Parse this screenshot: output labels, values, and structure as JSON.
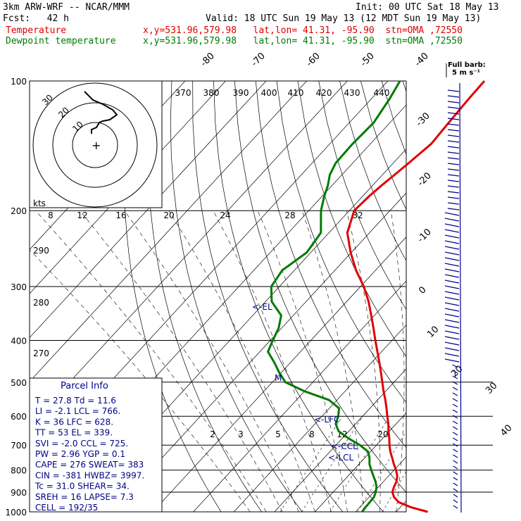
{
  "header": {
    "line1_left": "3km ARW-WRF -- NCAR/MMM",
    "line1_right": "Init: 00 UTC Sat 18 May 13",
    "line2_left": "Fcst:   42 h",
    "line2_right": "Valid: 18 UTC Sun 19 May 13 (12 MDT Sun 19 May 13)",
    "temp_label": "Temperature",
    "dew_label": "Dewpoint temperature",
    "location": "x,y=531.96,579.98   lat,lon= 41.31, -95.90  stn=OMA ,72550"
  },
  "colors": {
    "temperature": "#e00000",
    "dewpoint": "#007a00",
    "wind": "#00008b",
    "text_blue": "#00008b"
  },
  "legend": {
    "title": "Full barb:",
    "units": "5 m s⁻¹"
  },
  "hodograph": {
    "units": "kts",
    "ring_labels": [
      "30",
      "20",
      "10"
    ]
  },
  "parcel_info": {
    "title": "Parcel Info",
    "rows": [
      "T  =   27.8 Td =  11.6",
      "LI =   -2.1 LCL =  766.",
      "K  =     36 LFC = 628.",
      "TT =     53 EL  =  339.",
      "SVI =  -2.0 CCL =  725.",
      "PW =   2.96 YGP =   0.1",
      "CAPE =  276 SWEAT=  383",
      "CIN =  -381 HWBZ= 3997.",
      "Tc =   31.0 SHEAR=  34.",
      "SREH =   16 LAPSE=  7.3",
      "CELL = 192/35"
    ]
  },
  "annotations": {
    "el": "<-EL",
    "lfc": "<-LFC",
    "ccl": "<-CCL",
    "lcl": "<-LCL",
    "m": "M"
  },
  "chart_data": {
    "type": "line",
    "title": "",
    "xlabel": "",
    "ylabel": "",
    "ylim": [
      1000,
      100
    ],
    "pressure_ticks": [
      100,
      200,
      300,
      400,
      500,
      600,
      700,
      800,
      900,
      1000
    ],
    "isotherm_labels_upper": [
      "-80",
      "-70",
      "-60",
      "-50",
      "-40"
    ],
    "isotherm_labels_right": [
      "-30",
      "-20",
      "-10",
      "0",
      "10",
      "20",
      "30",
      "40"
    ],
    "theta_e_labels": [
      "370",
      "380",
      "390",
      "400",
      "410",
      "420",
      "430",
      "440"
    ],
    "mixing_ratio_labels_200": [
      "8",
      "12",
      "16",
      "20",
      "24",
      "28",
      "32"
    ],
    "mixing_ratio_labels_700": [
      "2",
      "3",
      "5",
      "8",
      "12",
      "20"
    ],
    "theta_labels": [
      "290",
      "280",
      "270"
    ],
    "series": [
      {
        "name": "Temperature",
        "pressure": [
          1000,
          975,
          950,
          925,
          900,
          875,
          850,
          825,
          800,
          775,
          750,
          725,
          700,
          675,
          650,
          625,
          600,
          575,
          550,
          525,
          500,
          475,
          450,
          425,
          400,
          375,
          350,
          325,
          300,
          275,
          250,
          225,
          200,
          185,
          175,
          165,
          155,
          140,
          125,
          110,
          100
        ],
        "temperature": [
          27.8,
          22.5,
          18.5,
          16.2,
          14.6,
          13.8,
          13.2,
          12.1,
          10.5,
          8.6,
          6.8,
          4.9,
          3.2,
          1.6,
          -0.2,
          -1.9,
          -3.9,
          -5.9,
          -8.1,
          -10.5,
          -12.9,
          -15.4,
          -18.1,
          -21.0,
          -24.1,
          -27.3,
          -30.8,
          -34.6,
          -39.2,
          -44.8,
          -50.2,
          -55.5,
          -58.8,
          -58.4,
          -57.8,
          -57.0,
          -56.2,
          -55.0,
          -55.5,
          -56.0,
          -56.2
        ]
      },
      {
        "name": "Dewpoint temperature",
        "pressure": [
          1000,
          975,
          950,
          925,
          900,
          875,
          850,
          825,
          800,
          775,
          750,
          725,
          700,
          675,
          650,
          625,
          600,
          575,
          550,
          525,
          500,
          475,
          450,
          425,
          400,
          375,
          350,
          325,
          300,
          275,
          250,
          225,
          200,
          185,
          175,
          165,
          155,
          140,
          125,
          110,
          100
        ],
        "dewpoint": [
          11.6,
          11.4,
          11.3,
          11.2,
          10.5,
          9.5,
          8.0,
          6.2,
          4.4,
          2.6,
          1.2,
          -0.6,
          -4.1,
          -8.5,
          -12.5,
          -14.9,
          -16.0,
          -17.6,
          -22.0,
          -30.0,
          -36.8,
          -40.5,
          -44.0,
          -48.0,
          -49.4,
          -50.7,
          -53.0,
          -58.5,
          -62.0,
          -63.0,
          -61.0,
          -62.0,
          -67.0,
          -69.5,
          -71.0,
          -73.0,
          -74.2,
          -74.4,
          -74.0,
          -75.5,
          -77.0
        ]
      }
    ]
  }
}
